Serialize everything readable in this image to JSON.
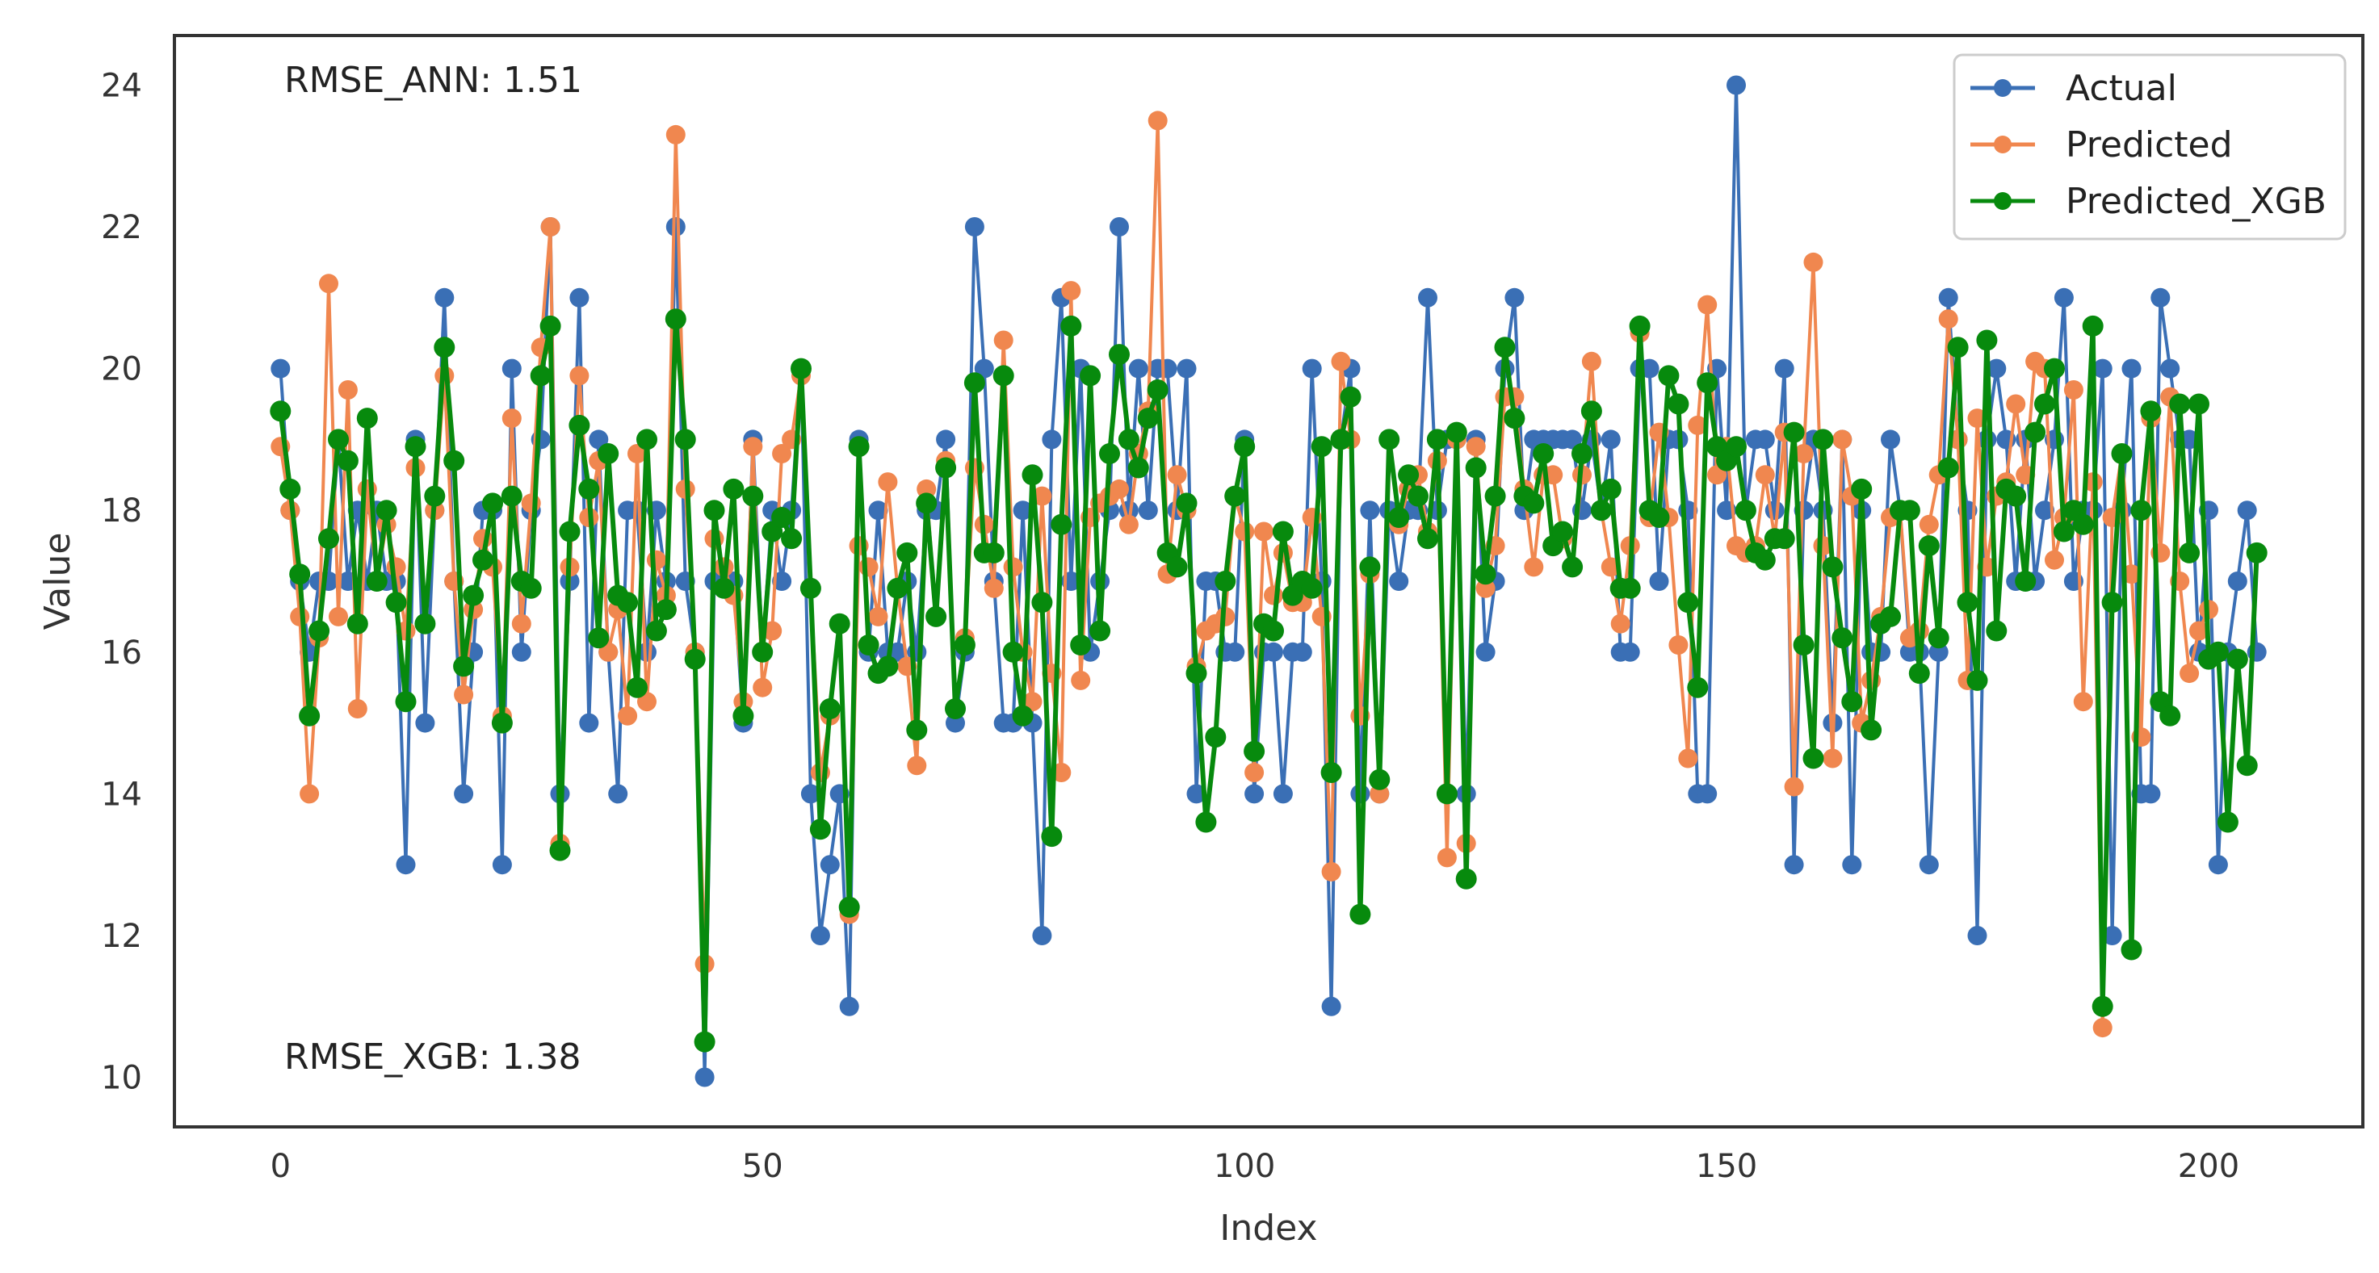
{
  "chart_data": {
    "type": "line",
    "title": "",
    "xlabel": "Index",
    "ylabel": "Value",
    "xlim": [
      -11,
      216
    ],
    "ylim": [
      9.3,
      24.7
    ],
    "xticks": [
      0,
      50,
      100,
      150,
      200
    ],
    "yticks": [
      10,
      12,
      14,
      16,
      18,
      20,
      22,
      24
    ],
    "grid": false,
    "legend_position": "top-right",
    "annotations": [
      "RMSE_ANN: 1.51",
      "RMSE_XGB: 1.38"
    ],
    "series": [
      {
        "name": "Actual",
        "color": "#3a6fb5",
        "values": [
          20,
          18,
          17,
          16,
          17,
          17,
          19,
          17,
          18,
          17,
          18,
          17,
          17,
          13,
          19,
          15,
          18,
          21,
          17,
          14,
          16,
          18,
          18,
          13,
          20,
          16,
          18,
          19,
          22,
          14,
          17,
          21,
          15,
          19,
          16,
          14,
          18,
          18,
          16,
          18,
          17,
          22,
          17,
          16,
          10,
          17,
          17,
          17,
          15,
          19,
          16,
          18,
          17,
          18,
          20,
          14,
          12,
          13,
          14,
          11,
          19,
          16,
          18,
          16,
          16,
          17,
          16,
          18,
          18,
          19,
          15,
          16,
          22,
          20,
          17,
          15,
          15,
          18,
          15,
          12,
          19,
          21,
          17,
          20,
          16,
          17,
          18,
          22,
          18,
          20,
          18,
          20,
          20,
          18,
          20,
          14,
          17,
          17,
          16,
          16,
          19,
          14,
          16,
          16,
          14,
          16,
          16,
          20,
          17,
          11,
          19,
          20,
          14,
          18,
          14,
          18,
          17,
          18,
          18,
          21,
          18,
          19,
          19,
          14,
          19,
          16,
          17,
          20,
          21,
          18,
          19,
          19,
          19,
          19,
          19,
          18,
          19,
          18,
          19,
          16,
          16,
          20,
          20,
          17,
          19,
          19,
          18,
          14,
          14,
          20,
          18,
          24,
          18,
          19,
          19,
          18,
          20,
          13,
          18,
          19,
          18,
          15,
          19,
          13,
          18,
          16,
          16,
          19,
          18,
          16,
          16,
          13,
          16,
          21,
          19,
          18,
          12,
          19,
          20,
          19,
          17,
          19,
          17,
          18,
          19,
          21,
          17,
          18,
          18,
          20,
          12,
          18,
          20,
          14,
          14,
          21,
          20,
          19,
          19,
          16,
          18,
          13,
          16,
          17,
          18,
          16
        ],
        "markers": true
      },
      {
        "name": "Predicted",
        "color": "#f0874f",
        "values": [
          18.9,
          18.0,
          16.5,
          14.0,
          16.2,
          21.2,
          16.5,
          19.7,
          15.2,
          18.3,
          17.0,
          17.8,
          17.2,
          16.3,
          18.6,
          16.4,
          18.0,
          19.9,
          17.0,
          15.4,
          16.6,
          17.6,
          17.2,
          15.1,
          19.3,
          16.4,
          18.1,
          20.3,
          22.0,
          13.3,
          17.2,
          19.9,
          17.9,
          18.7,
          16.0,
          16.6,
          15.1,
          18.8,
          15.3,
          17.3,
          16.8,
          23.3,
          18.3,
          16.0,
          11.6,
          17.6,
          17.2,
          16.8,
          15.3,
          18.9,
          15.5,
          16.3,
          18.8,
          19.0,
          19.9,
          16.9,
          14.3,
          15.1,
          16.4,
          12.3,
          17.5,
          17.2,
          16.5,
          18.4,
          16.9,
          15.8,
          14.4,
          18.3,
          16.5,
          18.7,
          15.2,
          16.2,
          18.6,
          17.8,
          16.9,
          20.4,
          17.2,
          16.0,
          15.3,
          18.2,
          15.7,
          14.3,
          21.1,
          15.6,
          17.9,
          18.1,
          18.2,
          18.3,
          17.8,
          18.8,
          19.4,
          23.5,
          17.1,
          18.5,
          18.0,
          15.8,
          16.3,
          16.4,
          16.5,
          18.2,
          17.7,
          14.3,
          17.7,
          16.8,
          17.4,
          16.7,
          16.7,
          17.9,
          16.5,
          12.9,
          20.1,
          19.0,
          15.1,
          17.1,
          14.0,
          19.0,
          17.8,
          18.3,
          18.5,
          17.7,
          18.7,
          13.1,
          19.0,
          13.3,
          18.9,
          16.9,
          17.5,
          19.6,
          19.6,
          18.3,
          17.2,
          18.5,
          18.5,
          17.6,
          17.2,
          18.5,
          20.1,
          18.0,
          17.2,
          16.4,
          17.5,
          20.5,
          17.9,
          19.1,
          17.9,
          16.1,
          14.5,
          19.2,
          20.9,
          18.5,
          18.9,
          17.5,
          17.4,
          17.5,
          18.5,
          17.6,
          19.1,
          14.1,
          18.8,
          21.5,
          17.5,
          14.5,
          19.0,
          18.2,
          15.0,
          15.6,
          16.5,
          17.9,
          18.0,
          16.2,
          16.3,
          17.8,
          18.5,
          20.7,
          19.0,
          15.6,
          19.3,
          17.2,
          18.2,
          18.4,
          19.5,
          18.5,
          20.1,
          20.0,
          17.3,
          17.9,
          19.7,
          15.3,
          18.4,
          10.7,
          17.9,
          18.8,
          17.1,
          14.8,
          19.3,
          17.4,
          19.6,
          17.0,
          15.7,
          16.3,
          16.6
        ]
      },
      {
        "name": "Predicted_XGB",
        "color": "#078a0d",
        "values": [
          19.4,
          18.3,
          17.1,
          15.1,
          16.3,
          17.6,
          19.0,
          18.7,
          16.4,
          19.3,
          17.0,
          18.0,
          16.7,
          15.3,
          18.9,
          16.4,
          18.2,
          20.3,
          18.7,
          15.8,
          16.8,
          17.3,
          18.1,
          15.0,
          18.2,
          17.0,
          16.9,
          19.9,
          20.6,
          13.2,
          17.7,
          19.2,
          18.3,
          16.2,
          18.8,
          16.8,
          16.7,
          15.5,
          19.0,
          16.3,
          16.6,
          20.7,
          19.0,
          15.9,
          10.5,
          18.0,
          16.9,
          18.3,
          15.1,
          18.2,
          16.0,
          17.7,
          17.9,
          17.6,
          20.0,
          16.9,
          13.5,
          15.2,
          16.4,
          12.4,
          18.9,
          16.1,
          15.7,
          15.8,
          16.9,
          17.4,
          14.9,
          18.1,
          16.5,
          18.6,
          15.2,
          16.1,
          19.8,
          17.4,
          17.4,
          19.9,
          16.0,
          15.1,
          18.5,
          16.7,
          13.4,
          17.8,
          20.6,
          16.1,
          19.9,
          16.3,
          18.8,
          20.2,
          19.0,
          18.6,
          19.3,
          19.7,
          17.4,
          17.2,
          18.1,
          15.7,
          13.6,
          14.8,
          17.0,
          18.2,
          18.9,
          14.6,
          16.4,
          16.3,
          17.7,
          16.8,
          17.0,
          16.9,
          18.9,
          14.3,
          19.0,
          19.6,
          12.3,
          17.2,
          14.2,
          19.0,
          17.9,
          18.5,
          18.2,
          17.6,
          19.0,
          14.0,
          19.1,
          12.8,
          18.6,
          17.1,
          18.2,
          20.3,
          19.3,
          18.2,
          18.1,
          18.8,
          17.5,
          17.7,
          17.2,
          18.8,
          19.4,
          18.0,
          18.3,
          16.9,
          16.9,
          20.6,
          18.0,
          17.9,
          19.9,
          19.5,
          16.7,
          15.5,
          19.8,
          18.9,
          18.7,
          18.9,
          18.0,
          17.4,
          17.3,
          17.6,
          17.6,
          19.1,
          16.1,
          14.5,
          19.0,
          17.2,
          16.2,
          15.3,
          18.3,
          14.9,
          16.4,
          16.5,
          18.0,
          18.0,
          15.7,
          17.5,
          16.2,
          18.6,
          20.3,
          16.7,
          15.6,
          20.4,
          16.3,
          18.3,
          18.2,
          17.0,
          19.1,
          19.5,
          20.0,
          17.7,
          18.0,
          17.8,
          20.6,
          11.0,
          16.7,
          18.8,
          11.8,
          18.0,
          19.4,
          15.3,
          15.1,
          19.5,
          17.4,
          19.5,
          15.9,
          16.0,
          13.6,
          15.9,
          14.4,
          17.4
        ]
      }
    ]
  }
}
